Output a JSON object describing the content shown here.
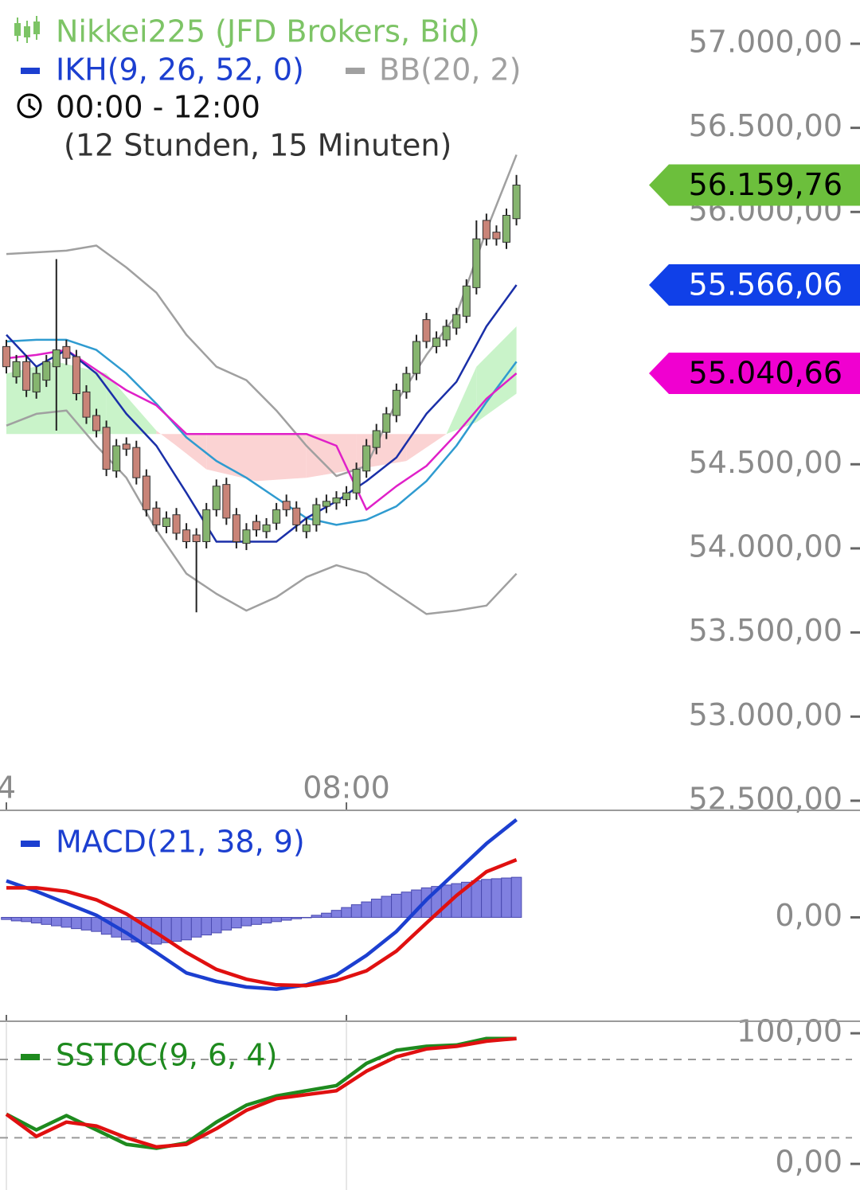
{
  "chart_data": [
    {
      "type": "candlestick",
      "name": "Nikkei225 (JFD Brokers, Bid)",
      "name_color": "#7dc466",
      "time_range": "00:00 - 12:00",
      "period": "(12 Stunden, 15 Minuten)",
      "up_color": "#86b56f",
      "down_color": "#c98478",
      "categories": [
        "4",
        null,
        null,
        null,
        null,
        null,
        null,
        null,
        null,
        null,
        null,
        null,
        null,
        null,
        null,
        null,
        null,
        null,
        null,
        null,
        null,
        null,
        null,
        null,
        null,
        null,
        null,
        null,
        null,
        null,
        null,
        null,
        null,
        null,
        "08:00",
        null,
        null,
        null,
        null,
        null,
        null,
        null,
        null,
        null,
        null,
        null,
        null,
        null,
        null,
        null,
        null,
        null
      ],
      "open": [
        55200,
        55020,
        55110,
        54930,
        55000,
        55080,
        55200,
        55140,
        54930,
        54790,
        54720,
        54460,
        54620,
        54600,
        54430,
        54240,
        54130,
        54200,
        54110,
        54080,
        54040,
        54230,
        54380,
        54200,
        54030,
        54160,
        54100,
        54150,
        54280,
        54240,
        54100,
        54140,
        54250,
        54270,
        54290,
        54330,
        54460,
        54600,
        54690,
        54790,
        54930,
        55040,
        55360,
        55200,
        55240,
        55310,
        55380,
        55550,
        55950,
        55880,
        55820,
        55960
      ],
      "high": [
        55240,
        55150,
        55150,
        55080,
        55150,
        55720,
        55240,
        55180,
        54970,
        54830,
        54760,
        54650,
        54660,
        54640,
        54470,
        54280,
        54220,
        54240,
        54150,
        54120,
        54270,
        54410,
        54420,
        54240,
        54150,
        54200,
        54180,
        54270,
        54320,
        54280,
        54180,
        54300,
        54320,
        54340,
        54370,
        54510,
        54650,
        54740,
        54840,
        54980,
        55080,
        55270,
        55400,
        55290,
        55360,
        55430,
        55600,
        55950,
        55990,
        55920,
        56020,
        56220
      ],
      "low": [
        55040,
        54980,
        54900,
        54890,
        54960,
        54700,
        55090,
        54880,
        54740,
        54660,
        54430,
        54420,
        54550,
        54380,
        54190,
        54100,
        54090,
        54050,
        54000,
        53620,
        54000,
        54190,
        54140,
        54000,
        53990,
        54070,
        54060,
        54110,
        54190,
        54100,
        54060,
        54100,
        54210,
        54230,
        54250,
        54290,
        54420,
        54560,
        54650,
        54750,
        54890,
        55000,
        55190,
        55160,
        55200,
        55270,
        55340,
        55510,
        55800,
        55800,
        55780,
        55920
      ],
      "close": [
        55080,
        55110,
        54940,
        55040,
        55110,
        55180,
        55130,
        54920,
        54780,
        54700,
        54470,
        54610,
        54590,
        54420,
        54230,
        54140,
        54180,
        54090,
        54040,
        54040,
        54230,
        54370,
        54180,
        54040,
        54110,
        54110,
        54140,
        54230,
        54230,
        54140,
        54140,
        54260,
        54280,
        54300,
        54330,
        54470,
        54610,
        54700,
        54800,
        54940,
        55040,
        55230,
        55230,
        55250,
        55320,
        55390,
        55560,
        55840,
        55840,
        55840,
        55980,
        56159.76
      ],
      "ichimoku": {
        "name": "IKH(9, 26, 52, 0)",
        "color": "#1c3fd0",
        "tenkan_color": "#1a2fa8",
        "kijun_color": "#e020c8",
        "x": [
          0,
          3,
          6,
          9,
          12,
          15,
          18,
          21,
          24,
          27,
          30,
          33,
          36,
          39,
          42,
          45,
          48,
          51
        ],
        "tenkan": [
          55270,
          55080,
          55180,
          55040,
          54800,
          54610,
          54330,
          54040,
          54040,
          54040,
          54180,
          54280,
          54400,
          54540,
          54800,
          54990,
          55320,
          55566.06
        ],
        "kijun": [
          55130,
          55150,
          55180,
          55060,
          54940,
          54850,
          54680,
          54680,
          54680,
          54680,
          54680,
          54610,
          54230,
          54370,
          54490,
          54680,
          54890,
          55040.66
        ],
        "cloud": {
          "up_color": "#c9f3c9",
          "down_color": "#fbd3d3",
          "x": [
            0,
            5,
            10,
            15,
            17,
            20,
            25,
            30,
            35,
            40,
            44,
            47,
            51
          ],
          "span_a": [
            55040,
            55110,
            55040,
            54700,
            54610,
            54470,
            54400,
            54420,
            54470,
            54520,
            54680,
            55080,
            55320
          ],
          "span_b": [
            54680,
            54680,
            54680,
            54680,
            54680,
            54680,
            54680,
            54680,
            54680,
            54680,
            54680,
            54750,
            54920
          ]
        }
      },
      "bollinger": {
        "name": "BB(20, 2)",
        "color": "#a0a0a0",
        "middle_color": "#2f9bd0",
        "x": [
          0,
          3,
          6,
          9,
          12,
          15,
          18,
          21,
          24,
          27,
          30,
          33,
          36,
          39,
          42,
          45,
          48,
          51
        ],
        "upper": [
          55750,
          55760,
          55770,
          55800,
          55670,
          55520,
          55270,
          55080,
          55000,
          54820,
          54610,
          54430,
          54490,
          54870,
          55150,
          55390,
          55890,
          56340
        ],
        "middle": [
          55230,
          55240,
          55240,
          55180,
          55040,
          54860,
          54660,
          54520,
          54420,
          54300,
          54180,
          54140,
          54170,
          54250,
          54400,
          54610,
          54870,
          55110
        ],
        "lower": [
          54730,
          54800,
          54820,
          54610,
          54420,
          54110,
          53850,
          53730,
          53630,
          53710,
          53830,
          53900,
          53850,
          53730,
          53610,
          53630,
          53660,
          53850
        ]
      },
      "price_labels": [
        {
          "value": 56159.76,
          "label": "56.159,76",
          "color": "#6cbf3c",
          "text_color": "#000000"
        },
        {
          "value": 55566.06,
          "label": "55.566,06",
          "color": "#1040e8",
          "text_color": "#ffffff"
        },
        {
          "value": 55040.66,
          "label": "55.040,66",
          "color": "#f000d0",
          "text_color": "#000000"
        }
      ],
      "ylim": [
        52443,
        57260
      ],
      "yticks": [
        {
          "value": 57000,
          "label": "57.000,00"
        },
        {
          "value": 56500,
          "label": "56.500,00"
        },
        {
          "value": 56000,
          "label": "56.000,00"
        },
        {
          "value": 54500,
          "label": "54.500,00"
        },
        {
          "value": 54000,
          "label": "54.000,00"
        },
        {
          "value": 53500,
          "label": "53.500,00"
        },
        {
          "value": 53000,
          "label": "53.000,00"
        },
        {
          "value": 52500,
          "label": "52.500,00"
        }
      ]
    },
    {
      "type": "macd",
      "name": "MACD(21, 38, 9)",
      "color": "#1c3fd0",
      "signal_color": "#e01010",
      "histogram_color": "#8080e0",
      "x": [
        0,
        3,
        6,
        9,
        12,
        15,
        18,
        21,
        24,
        27,
        30,
        33,
        36,
        39,
        42,
        45,
        48,
        51
      ],
      "macd": [
        52,
        37,
        20,
        3,
        -22,
        -50,
        -79,
        -91,
        -99,
        -102,
        -96,
        -82,
        -54,
        -20,
        25,
        65,
        105,
        139
      ],
      "signal": [
        42,
        42,
        37,
        25,
        5,
        -22,
        -50,
        -74,
        -88,
        -96,
        -97,
        -90,
        -76,
        -48,
        -8,
        31,
        65,
        82
      ],
      "histogram": [
        -3,
        -5,
        -6,
        -8,
        -10,
        -12,
        -14,
        -16,
        -18,
        -20,
        -24,
        -28,
        -32,
        -35,
        -37,
        -38,
        -36,
        -34,
        -32,
        -28,
        -25,
        -22,
        -18,
        -15,
        -12,
        -10,
        -8,
        -6,
        -4,
        -2,
        0,
        3,
        6,
        10,
        14,
        18,
        22,
        26,
        30,
        33,
        36,
        39,
        42,
        44,
        46,
        48,
        50,
        52,
        54,
        55,
        56,
        57
      ],
      "ylim": [
        -150,
        150
      ],
      "yticks": [
        {
          "value": 0,
          "label": "0,00"
        }
      ]
    },
    {
      "type": "stochastic",
      "name": "SSTOC(9, 6, 4)",
      "color": "#1e8a1e",
      "signal_color": "#e01010",
      "x": [
        0,
        3,
        6,
        9,
        12,
        15,
        18,
        21,
        24,
        27,
        30,
        33,
        36,
        39,
        42,
        45,
        48,
        51
      ],
      "k": [
        38,
        26,
        37,
        26,
        15,
        12,
        16,
        32,
        45,
        52,
        56,
        60,
        77,
        87,
        90,
        91,
        96,
        96
      ],
      "d": [
        38,
        21,
        32,
        29,
        20,
        13,
        15,
        27,
        41,
        50,
        53,
        56,
        71,
        82,
        88,
        90,
        94,
        96
      ],
      "levels": [
        80,
        20
      ],
      "ylim": [
        -20,
        108
      ],
      "yticks": [
        {
          "value": 100,
          "label": "100,00"
        },
        {
          "value": 0,
          "label": "0,00"
        }
      ]
    }
  ]
}
